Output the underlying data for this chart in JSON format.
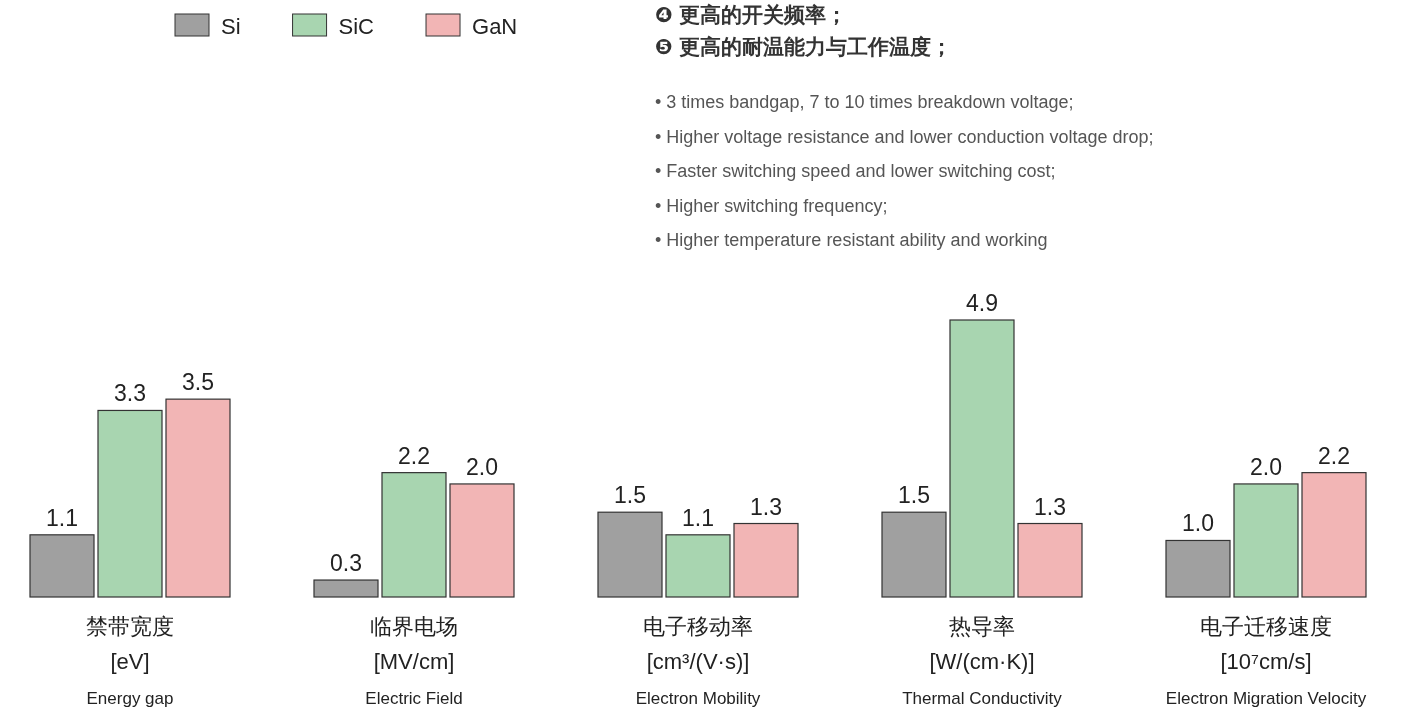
{
  "chart_data": [
    {
      "type": "other",
      "annotations": [
        "❹ 更高的开关频率；",
        "❺ 更高的耐温能力与工作温度；",
        "• 3 times bandgap, 7 to 10 times breakdown voltage;",
        "• Higher voltage resistance and lower conduction voltage drop;",
        "• Faster switching speed and lower switching cost;",
        "• Higher switching frequency;",
        "• Higher temperature resistant ability and working"
      ]
    },
    {
      "type": "bar",
      "categories": [
        null
      ],
      "xlabel": "禁带宽度\n[eV]\nEnergy gap",
      "legend": "top right",
      "series": [
        {
          "name": "Si",
          "color": "#a0a0a0",
          "values": [
            1.1
          ],
          "value_labels": [
            "1.1"
          ]
        },
        {
          "name": "SiC",
          "color": "#a8d5b0",
          "values": [
            3.3
          ],
          "value_labels": [
            "3.3"
          ]
        },
        {
          "name": "GaN",
          "color": "#f2b5b5",
          "values": [
            3.5
          ],
          "value_labels": [
            "3.5"
          ]
        }
      ]
    },
    {
      "type": "bar",
      "categories": [
        null
      ],
      "xlabel": "临界电场\n[MV/cm]\nElectric Field",
      "series": [
        {
          "color": "#a0a0a0",
          "values": [
            0.3
          ],
          "value_labels": [
            "0.3"
          ]
        },
        {
          "color": "#a8d5b0",
          "values": [
            2.2
          ],
          "value_labels": [
            "2.2"
          ]
        },
        {
          "color": "#f2b5b5",
          "values": [
            2.0
          ],
          "value_labels": [
            "2.0"
          ]
        }
      ]
    },
    {
      "type": "bar",
      "categories": [
        null
      ],
      "xlabel": "电子移动率\n[cm³/(V·s)]\nElectron Mobility",
      "series": [
        {
          "color": "#a0a0a0",
          "values": [
            1.5
          ],
          "value_labels": [
            "1.5"
          ]
        },
        {
          "color": "#a8d5b0",
          "values": [
            1.1
          ],
          "value_labels": [
            "1.1"
          ]
        },
        {
          "color": "#f2b5b5",
          "values": [
            1.3
          ],
          "value_labels": [
            "1.3"
          ]
        }
      ]
    },
    {
      "type": "bar",
      "categories": [
        null
      ],
      "xlabel": "热导率\n[W/(cm·K)]\nThermal Conductivity",
      "series": [
        {
          "color": "#a0a0a0",
          "values": [
            1.5
          ],
          "value_labels": [
            "1.5"
          ]
        },
        {
          "color": "#a8d5b0",
          "values": [
            4.9
          ],
          "value_labels": [
            "4.9"
          ]
        },
        {
          "color": "#f2b5b5",
          "values": [
            1.3
          ],
          "value_labels": [
            "1.3"
          ]
        }
      ]
    },
    {
      "type": "bar",
      "categories": [
        null
      ],
      "xlabel": "电子迁移速度\n[10⁷cm/s]\nElectron Migration Velocity",
      "series": [
        {
          "color": "#a0a0a0",
          "values": [
            1.0
          ],
          "value_labels": [
            "1.0"
          ]
        },
        {
          "color": "#a8d5b0",
          "values": [
            2.0
          ],
          "value_labels": [
            "2.0"
          ]
        },
        {
          "color": "#f2b5b5",
          "values": [
            2.2
          ],
          "value_labels": [
            "2.2"
          ]
        }
      ]
    }
  ]
}
